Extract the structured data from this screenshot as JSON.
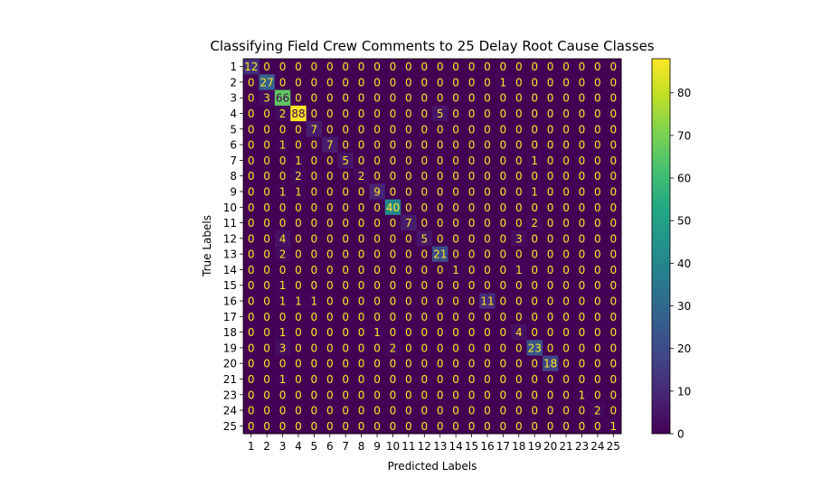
{
  "chart_data": {
    "type": "heatmap",
    "title": "Classifying Field Crew Comments to 25 Delay Root Cause Classes",
    "xlabel": "Predicted Labels",
    "ylabel": "True Labels",
    "x_tick_labels": [
      "1",
      "2",
      "3",
      "4",
      "5",
      "6",
      "7",
      "8",
      "9",
      "10",
      "11",
      "12",
      "13",
      "14",
      "15",
      "16",
      "17",
      "18",
      "19",
      "20",
      "21",
      "23",
      "24",
      "25"
    ],
    "y_tick_labels": [
      "1",
      "2",
      "3",
      "4",
      "5",
      "6",
      "7",
      "8",
      "9",
      "10",
      "11",
      "12",
      "13",
      "14",
      "15",
      "16",
      "17",
      "18",
      "19",
      "20",
      "21",
      "23",
      "24",
      "25"
    ],
    "matrix": [
      [
        12,
        0,
        0,
        0,
        0,
        0,
        0,
        0,
        0,
        0,
        0,
        0,
        0,
        0,
        0,
        0,
        0,
        0,
        0,
        0,
        0,
        0,
        0,
        0
      ],
      [
        0,
        27,
        0,
        0,
        0,
        0,
        0,
        0,
        0,
        0,
        0,
        0,
        0,
        0,
        0,
        0,
        1,
        0,
        0,
        0,
        0,
        0,
        0,
        0
      ],
      [
        0,
        3,
        66,
        0,
        0,
        0,
        0,
        0,
        0,
        0,
        0,
        0,
        0,
        0,
        0,
        0,
        0,
        0,
        0,
        0,
        0,
        0,
        0,
        0
      ],
      [
        0,
        0,
        2,
        88,
        0,
        0,
        0,
        0,
        0,
        0,
        0,
        0,
        5,
        0,
        0,
        0,
        0,
        0,
        0,
        0,
        0,
        0,
        0,
        0
      ],
      [
        0,
        0,
        0,
        0,
        7,
        0,
        0,
        0,
        0,
        0,
        0,
        0,
        0,
        0,
        0,
        0,
        0,
        0,
        0,
        0,
        0,
        0,
        0,
        0
      ],
      [
        0,
        0,
        1,
        0,
        0,
        7,
        0,
        0,
        0,
        0,
        0,
        0,
        0,
        0,
        0,
        0,
        0,
        0,
        0,
        0,
        0,
        0,
        0,
        0
      ],
      [
        0,
        0,
        0,
        1,
        0,
        0,
        5,
        0,
        0,
        0,
        0,
        0,
        0,
        0,
        0,
        0,
        0,
        0,
        1,
        0,
        0,
        0,
        0,
        0
      ],
      [
        0,
        0,
        0,
        2,
        0,
        0,
        0,
        2,
        0,
        0,
        0,
        0,
        0,
        0,
        0,
        0,
        0,
        0,
        0,
        0,
        0,
        0,
        0,
        0
      ],
      [
        0,
        0,
        1,
        1,
        0,
        0,
        0,
        0,
        9,
        0,
        0,
        0,
        0,
        0,
        0,
        0,
        0,
        0,
        1,
        0,
        0,
        0,
        0,
        0
      ],
      [
        0,
        0,
        0,
        0,
        0,
        0,
        0,
        0,
        0,
        40,
        0,
        0,
        0,
        0,
        0,
        0,
        0,
        0,
        0,
        0,
        0,
        0,
        0,
        0
      ],
      [
        0,
        0,
        0,
        0,
        0,
        0,
        0,
        0,
        0,
        0,
        7,
        0,
        0,
        0,
        0,
        0,
        0,
        0,
        2,
        0,
        0,
        0,
        0,
        0
      ],
      [
        0,
        0,
        4,
        0,
        0,
        0,
        0,
        0,
        0,
        0,
        0,
        5,
        0,
        0,
        0,
        0,
        0,
        3,
        0,
        0,
        0,
        0,
        0,
        0
      ],
      [
        0,
        0,
        2,
        0,
        0,
        0,
        0,
        0,
        0,
        0,
        0,
        0,
        21,
        0,
        0,
        0,
        0,
        0,
        0,
        0,
        0,
        0,
        0,
        0
      ],
      [
        0,
        0,
        0,
        0,
        0,
        0,
        0,
        0,
        0,
        0,
        0,
        0,
        0,
        1,
        0,
        0,
        0,
        1,
        0,
        0,
        0,
        0,
        0,
        0
      ],
      [
        0,
        0,
        1,
        0,
        0,
        0,
        0,
        0,
        0,
        0,
        0,
        0,
        0,
        0,
        0,
        0,
        0,
        0,
        0,
        0,
        0,
        0,
        0,
        0
      ],
      [
        0,
        0,
        1,
        1,
        1,
        0,
        0,
        0,
        0,
        0,
        0,
        0,
        0,
        0,
        0,
        11,
        0,
        0,
        0,
        0,
        0,
        0,
        0,
        0
      ],
      [
        0,
        0,
        0,
        0,
        0,
        0,
        0,
        0,
        0,
        0,
        0,
        0,
        0,
        0,
        0,
        0,
        0,
        0,
        0,
        0,
        0,
        0,
        0,
        0
      ],
      [
        0,
        0,
        1,
        0,
        0,
        0,
        0,
        0,
        1,
        0,
        0,
        0,
        0,
        0,
        0,
        0,
        0,
        4,
        0,
        0,
        0,
        0,
        0,
        0
      ],
      [
        0,
        0,
        3,
        0,
        0,
        0,
        0,
        0,
        0,
        2,
        0,
        0,
        0,
        0,
        0,
        0,
        0,
        0,
        23,
        0,
        0,
        0,
        0,
        0
      ],
      [
        0,
        0,
        0,
        0,
        0,
        0,
        0,
        0,
        0,
        0,
        0,
        0,
        0,
        0,
        0,
        0,
        0,
        0,
        0,
        18,
        0,
        0,
        0,
        0
      ],
      [
        0,
        0,
        1,
        0,
        0,
        0,
        0,
        0,
        0,
        0,
        0,
        0,
        0,
        0,
        0,
        0,
        0,
        0,
        0,
        0,
        0,
        0,
        0,
        0
      ],
      [
        0,
        0,
        0,
        0,
        0,
        0,
        0,
        0,
        0,
        0,
        0,
        0,
        0,
        0,
        0,
        0,
        0,
        0,
        0,
        0,
        0,
        1,
        0,
        0
      ],
      [
        0,
        0,
        0,
        0,
        0,
        0,
        0,
        0,
        0,
        0,
        0,
        0,
        0,
        0,
        0,
        0,
        0,
        0,
        0,
        0,
        0,
        0,
        2,
        0
      ],
      [
        0,
        0,
        0,
        0,
        0,
        0,
        0,
        0,
        0,
        0,
        0,
        0,
        0,
        0,
        0,
        0,
        0,
        0,
        0,
        0,
        0,
        0,
        0,
        1
      ]
    ],
    "colormap": "viridis",
    "vmin": 0,
    "vmax": 88,
    "colorbar_ticks": [
      0,
      10,
      20,
      30,
      40,
      50,
      60,
      70,
      80
    ],
    "text_color_low": "#fde725",
    "text_color_high": "#440154",
    "grid": false
  }
}
